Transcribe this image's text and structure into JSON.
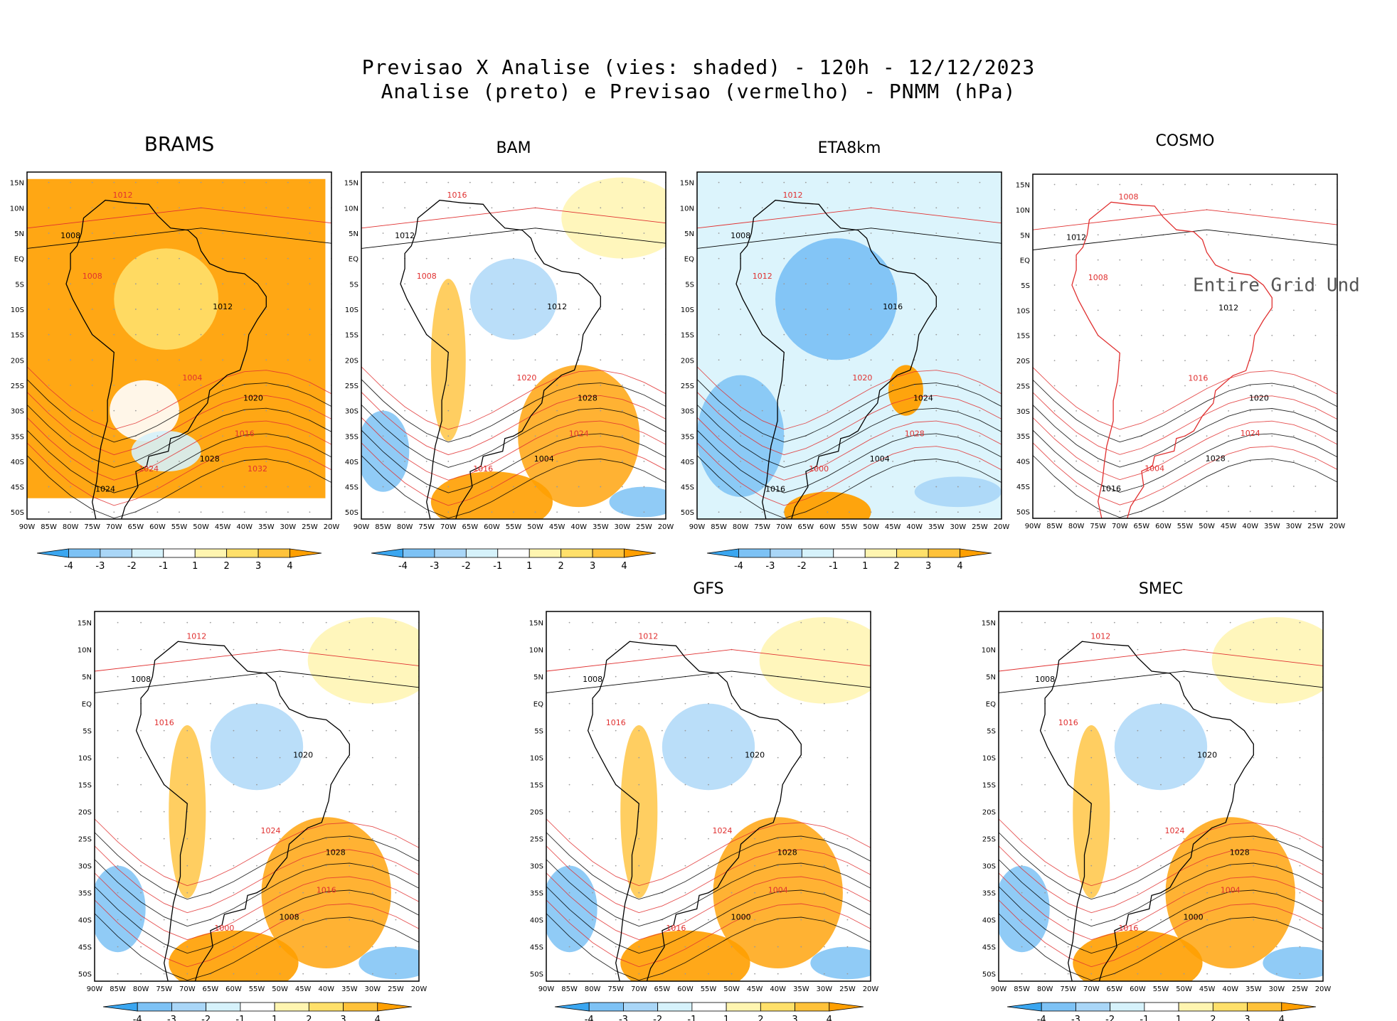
{
  "header": {
    "title_line1": "Previsao X Analise (vies: shaded) - 120h - 12/12/2023",
    "title_line2": "Analise (preto) e Previsao (vermelho) - PNMM (hPa)"
  },
  "axes": {
    "lat_labels": [
      "15N",
      "10N",
      "5N",
      "EQ",
      "5S",
      "10S",
      "15S",
      "20S",
      "25S",
      "30S",
      "35S",
      "40S",
      "45S",
      "50S"
    ],
    "lon_labels": [
      "90W",
      "85W",
      "80W",
      "75W",
      "70W",
      "65W",
      "60W",
      "55W",
      "50W",
      "45W",
      "40W",
      "35W",
      "30W",
      "25W",
      "20W"
    ]
  },
  "colorbar": {
    "labels": [
      "-4",
      "-3",
      "-2",
      "-1",
      "1",
      "2",
      "3",
      "4"
    ],
    "colors": [
      "#3aa6f0",
      "#7dc2f5",
      "#a9d6f7",
      "#d6f2fb",
      "#ffffff",
      "#fff5b0",
      "#ffe06a",
      "#ffc23a",
      "#ff9f00"
    ]
  },
  "colors": {
    "analysis_contour": "#000000",
    "forecast_contour": "#e03030",
    "grid": "#9a9a9a"
  },
  "panels": [
    {
      "id": "brams",
      "title": "BRAMS",
      "bias": "warm",
      "isobars": [
        "1012",
        "1008",
        "1008",
        "1012",
        "1004",
        "1020",
        "1016",
        "1028",
        "1024",
        "1024",
        "1032"
      ]
    },
    {
      "id": "bam",
      "title": "BAM",
      "bias": "mixed",
      "isobars": [
        "1016",
        "1012",
        "1008",
        "1012",
        "1020",
        "1028",
        "1024",
        "1004",
        "1016"
      ]
    },
    {
      "id": "eta8km",
      "title": "ETA8km",
      "bias": "cold",
      "isobars": [
        "1012",
        "1008",
        "1012",
        "1016",
        "1020",
        "1024",
        "1028",
        "1004",
        "1000",
        "1016"
      ]
    },
    {
      "id": "cosmo",
      "title": "COSMO",
      "bias": "none",
      "note": "Entire Grid Und",
      "isobars": [
        "1008",
        "1012",
        "1008",
        "1012",
        "1016",
        "1020",
        "1024",
        "1028",
        "1004",
        "1016"
      ]
    },
    {
      "id": "panel5",
      "title": "",
      "bias": "mixed",
      "isobars": [
        "1012",
        "1008",
        "1016",
        "1020",
        "1024",
        "1028",
        "1016",
        "1008",
        "1000"
      ]
    },
    {
      "id": "gfs",
      "title": "GFS",
      "bias": "mixed",
      "isobars": [
        "1012",
        "1008",
        "1016",
        "1020",
        "1024",
        "1028",
        "1004",
        "1000",
        "1016"
      ]
    },
    {
      "id": "smec",
      "title": "SMEC",
      "bias": "mixed",
      "isobars": [
        "1012",
        "1008",
        "1016",
        "1020",
        "1024",
        "1028",
        "1004",
        "1000",
        "1016"
      ]
    }
  ]
}
